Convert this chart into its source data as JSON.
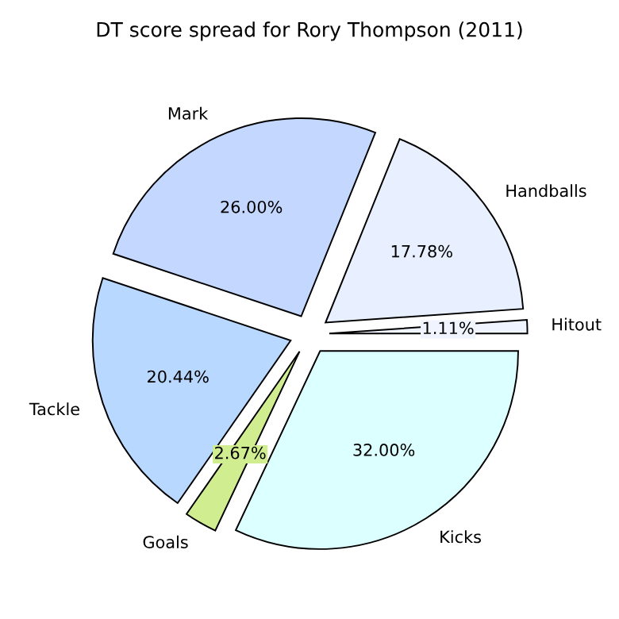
{
  "chart_data": {
    "type": "pie",
    "title": "DT score spread for Rory Thompson (2011)",
    "categories": [
      "Hitout",
      "Handballs",
      "Mark",
      "Tackle",
      "Goals",
      "Kicks"
    ],
    "values": [
      1.11,
      17.78,
      26.0,
      20.44,
      2.67,
      32.0
    ],
    "value_labels": [
      "1.11%",
      "17.78%",
      "26.00%",
      "20.44%",
      "2.67%",
      "32.00%"
    ],
    "colors": [
      "#f0f4ff",
      "#e8f0ff",
      "#c4d8ff",
      "#b8d8ff",
      "#d0ee90",
      "#dcffff"
    ],
    "legend": false
  }
}
